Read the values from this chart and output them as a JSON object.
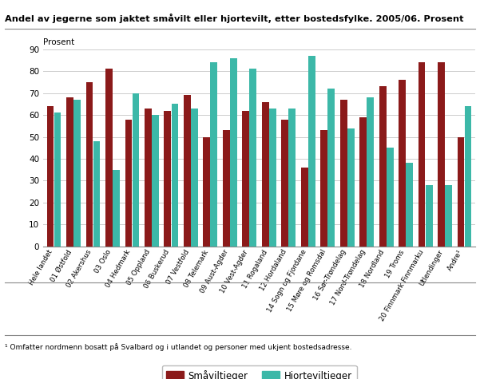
{
  "title": "Andel av jegerne som jaktet småvilt eller hjortevilt, etter bostedsfylke. 2005/06. Prosent",
  "ylabel": "Prosent",
  "footnote": "¹ Omfatter nordmenn bosatt på Svalbard og i utlandet og personer med ukjent bostedsadresse.",
  "categories": [
    "Hele landet",
    "01 Østfold",
    "02 Akershus",
    "03 Oslo",
    "04 Hedmark",
    "05 Oppland",
    "06 Buskerud",
    "07 Vestfold",
    "08 Telemark",
    "09 Aust-Agder",
    "10 Vest-Agder",
    "11 Rogaland",
    "12 Hordaland",
    "14 Sogn og Fjordane",
    "15 Møre og Romsdal",
    "16 Sør-Trøndelag",
    "17 Nord-Trøndelag",
    "18 Nordland",
    "19 Troms",
    "20 Finnmark Finnmarku",
    "Utlendinger",
    "Andre¹"
  ],
  "smavilt": [
    64,
    68,
    75,
    81,
    58,
    63,
    62,
    69,
    50,
    53,
    62,
    66,
    58,
    36,
    53,
    67,
    59,
    73,
    76,
    84,
    84,
    50
  ],
  "hjortevilt": [
    61,
    67,
    48,
    35,
    70,
    60,
    65,
    63,
    84,
    86,
    81,
    63,
    63,
    87,
    72,
    54,
    68,
    45,
    38,
    28,
    28,
    64
  ],
  "smavilt_color": "#8B1A1A",
  "hjortevilt_color": "#3CB8A8",
  "background_color": "#ffffff",
  "grid_color": "#cccccc",
  "ylim": [
    0,
    90
  ],
  "yticks": [
    0,
    10,
    20,
    30,
    40,
    50,
    60,
    70,
    80,
    90
  ],
  "legend_smavilt": "Småviltjeger",
  "legend_hjortevilt": "Hjorteviltjeger"
}
